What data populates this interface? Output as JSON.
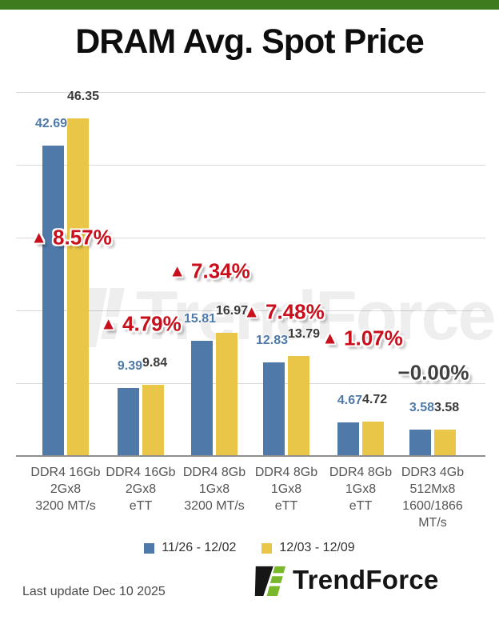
{
  "header": {
    "title": "DRAM Avg. Spot Price"
  },
  "colors": {
    "top_bar": "#3d7b1e",
    "blue": "#4e79a8",
    "yellow": "#e9c647",
    "up_red": "#c8101d",
    "flat_gray": "#3f3f3f",
    "blue_label": "#4e79a8",
    "gray_label": "#3a3a3a",
    "logo_green": "#7ab82b",
    "logo_black": "#161616"
  },
  "chart_data": {
    "type": "bar",
    "title": "DRAM Avg. Spot Price",
    "ylabel": "",
    "xlabel": "",
    "ylim": [
      0,
      50
    ],
    "grid_step": 10,
    "grid": "horizontal",
    "legend_position": "bottom",
    "categories": [
      [
        "DDR4 16Gb",
        "2Gx8",
        "3200 MT/s"
      ],
      [
        "DDR4 16Gb",
        "2Gx8",
        "eTT"
      ],
      [
        "DDR4 8Gb",
        "1Gx8",
        "3200 MT/s"
      ],
      [
        "DDR4 8Gb",
        "1Gx8",
        "eTT"
      ],
      [
        "DDR4 8Gb",
        "1Gx8",
        "eTT"
      ],
      [
        "DDR3 4Gb",
        "512Mx8",
        "1600/1866",
        "MT/s"
      ]
    ],
    "series": [
      {
        "name": "11/26 - 12/02",
        "color": "#4e79a8",
        "values": [
          42.69,
          9.39,
          15.81,
          12.83,
          4.67,
          3.58
        ]
      },
      {
        "name": "12/03 - 12/09",
        "color": "#e9c647",
        "values": [
          46.35,
          9.84,
          16.97,
          13.79,
          4.72,
          3.58
        ]
      }
    ],
    "changes": [
      {
        "text": "8.57%",
        "direction": "up"
      },
      {
        "text": "4.79%",
        "direction": "up"
      },
      {
        "text": "7.34%",
        "direction": "up"
      },
      {
        "text": "7.48%",
        "direction": "up"
      },
      {
        "text": "1.07%",
        "direction": "up"
      },
      {
        "text": "−0.00%",
        "direction": "flat"
      }
    ]
  },
  "legend": {
    "items": [
      {
        "label": "11/26 - 12/02",
        "color": "#4e79a8"
      },
      {
        "label": "12/03 - 12/09",
        "color": "#e9c647"
      }
    ]
  },
  "watermark": {
    "text": "TrendForce"
  },
  "footer": {
    "last_update": "Last update Dec 10 2025",
    "brand": "TrendForce"
  }
}
